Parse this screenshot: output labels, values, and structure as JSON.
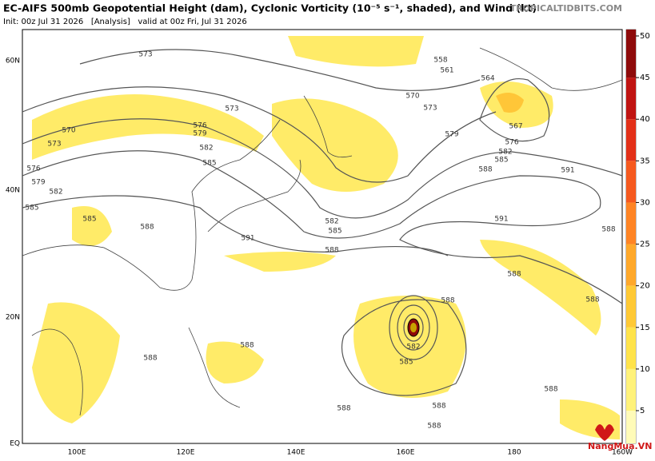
{
  "header": {
    "title": "EC-AIFS 500mb Geopotential Height (dam), Cyclonic Vorticity (10⁻⁵ s⁻¹, shaded), and Wind (kt)",
    "init": "Init: 00z Jul 31 2026   [Analysis]   valid at 00z Fri, Jul 31 2026",
    "source": "TROPICALTIDBITS.COM"
  },
  "map": {
    "lon_labels": [
      "100E",
      "120E",
      "140E",
      "160E",
      "180",
      "160W"
    ],
    "lat_labels": [
      "60N",
      "40N",
      "20N",
      "EQ"
    ],
    "contour_labels": [
      "573",
      "558",
      "561",
      "564",
      "570",
      "573",
      "567",
      "573",
      "570",
      "576",
      "579",
      "573",
      "582",
      "585",
      "576",
      "579",
      "582",
      "585",
      "585",
      "588",
      "579",
      "576",
      "582",
      "585",
      "588",
      "591",
      "582",
      "585",
      "591",
      "588",
      "591",
      "588",
      "588",
      "588",
      "588",
      "582",
      "585",
      "588",
      "588",
      "588",
      "588",
      "588",
      "588"
    ]
  },
  "colorbar": {
    "ticks": [
      5,
      10,
      15,
      20,
      25,
      30,
      35,
      40,
      45,
      50
    ],
    "colors": [
      "#fffbb8",
      "#fff27a",
      "#ffe34a",
      "#ffc935",
      "#ffa82a",
      "#ff8424",
      "#f6591e",
      "#e33018",
      "#c01412",
      "#8e0a0a"
    ]
  },
  "watermark": "NangMua.VN"
}
